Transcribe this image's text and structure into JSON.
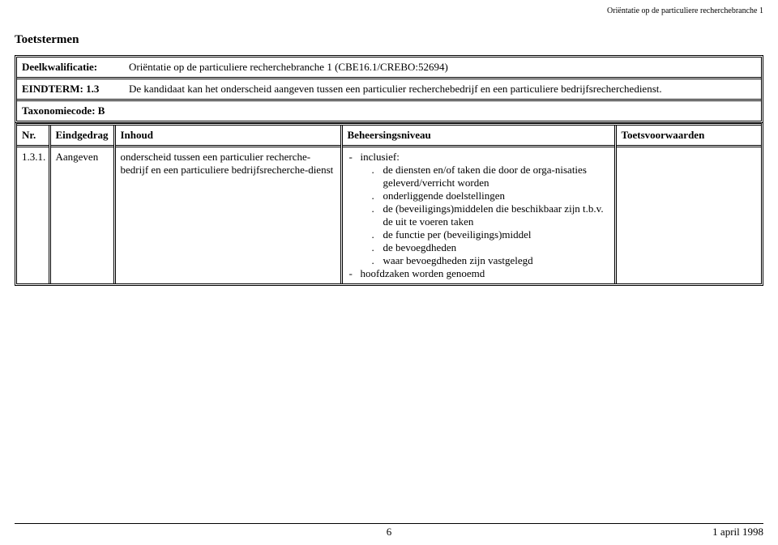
{
  "doc_header": "Oriëntatie op de particuliere recherchebranche 1",
  "section_title": "Toetstermen",
  "meta": {
    "deelkwalificatie_label": "Deelkwalificatie:",
    "deelkwalificatie_value": "Oriëntatie op de particuliere recherchebranche 1 (CBE16.1/CREBO:52694)",
    "eindterm_label": "EINDTERM: 1.3",
    "eindterm_value": "De kandidaat kan het onderscheid aangeven tussen een particulier recherchebedrijf en een particuliere bedrijfsrecherchedienst.",
    "taxonomie_label": "Taxonomiecode: B"
  },
  "columns": {
    "nr": "Nr.",
    "eindgedrag": "Eindgedrag",
    "inhoud": "Inhoud",
    "beheersingsniveau": "Beheersingsniveau",
    "toetsvoorwaarden": "Toetsvoorwaarden"
  },
  "row": {
    "nr": "1.3.1.",
    "eindgedrag": "Aangeven",
    "inhoud": "onderscheid tussen een particulier recherche-bedrijf en een particuliere bedrijfsrecherche-dienst",
    "beheer_top_1": "inclusief:",
    "beheer_sub_1": "de diensten en/of taken die door de orga-nisaties geleverd/verricht worden",
    "beheer_sub_2": "onderliggende doelstellingen",
    "beheer_sub_3": "de (beveiligings)middelen die beschikbaar zijn t.b.v. de uit te voeren taken",
    "beheer_sub_4": "de functie per (beveiligings)middel",
    "beheer_sub_5": "de bevoegdheden",
    "beheer_sub_6": "waar bevoegdheden zijn vastgelegd",
    "beheer_top_2": "hoofdzaken worden genoemd",
    "toetsvoorwaarden": ""
  },
  "footer": {
    "page": "6",
    "date": "1 april 1998"
  }
}
